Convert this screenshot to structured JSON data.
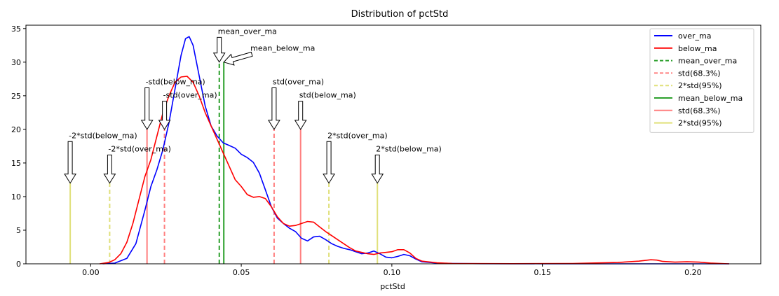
{
  "chart_data": {
    "type": "line",
    "title": "Distribution of pctStd",
    "xlabel": "pctStd",
    "ylabel": "",
    "xlim": [
      -0.0215,
      0.2225
    ],
    "ylim": [
      0,
      35.5
    ],
    "xticks": [
      0.0,
      0.05,
      0.1,
      0.15,
      0.2
    ],
    "xtick_labels": [
      "0.00",
      "0.05",
      "0.10",
      "0.15",
      "0.20"
    ],
    "yticks": [
      0,
      5,
      10,
      15,
      20,
      25,
      30,
      35
    ],
    "ytick_labels": [
      "0",
      "5",
      "10",
      "15",
      "20",
      "25",
      "30",
      "35"
    ],
    "grid": false,
    "legend_position": "top-right",
    "series": [
      {
        "name": "over_ma",
        "color": "#0000ff",
        "points": [
          [
            0.004,
            0
          ],
          [
            0.008,
            0.1
          ],
          [
            0.012,
            0.8
          ],
          [
            0.015,
            3
          ],
          [
            0.018,
            8
          ],
          [
            0.02,
            11.5
          ],
          [
            0.022,
            14
          ],
          [
            0.024,
            17
          ],
          [
            0.026,
            21
          ],
          [
            0.028,
            26
          ],
          [
            0.03,
            31
          ],
          [
            0.0315,
            33.5
          ],
          [
            0.0327,
            33.8
          ],
          [
            0.034,
            32.5
          ],
          [
            0.036,
            28
          ],
          [
            0.038,
            23.5
          ],
          [
            0.04,
            20.5
          ],
          [
            0.042,
            19
          ],
          [
            0.044,
            18
          ],
          [
            0.046,
            17.6
          ],
          [
            0.048,
            17.2
          ],
          [
            0.05,
            16.3
          ],
          [
            0.052,
            15.8
          ],
          [
            0.054,
            15.1
          ],
          [
            0.056,
            13.5
          ],
          [
            0.058,
            11
          ],
          [
            0.06,
            8.5
          ],
          [
            0.062,
            6.8
          ],
          [
            0.064,
            6
          ],
          [
            0.066,
            5.3
          ],
          [
            0.068,
            4.8
          ],
          [
            0.07,
            3.8
          ],
          [
            0.072,
            3.4
          ],
          [
            0.074,
            4
          ],
          [
            0.076,
            4.1
          ],
          [
            0.078,
            3.6
          ],
          [
            0.08,
            3
          ],
          [
            0.082,
            2.6
          ],
          [
            0.084,
            2.3
          ],
          [
            0.086,
            2.1
          ],
          [
            0.088,
            1.8
          ],
          [
            0.09,
            1.5
          ],
          [
            0.092,
            1.6
          ],
          [
            0.094,
            1.9
          ],
          [
            0.096,
            1.5
          ],
          [
            0.098,
            1
          ],
          [
            0.1,
            0.9
          ],
          [
            0.102,
            1.1
          ],
          [
            0.104,
            1.4
          ],
          [
            0.106,
            1.2
          ],
          [
            0.108,
            0.7
          ],
          [
            0.11,
            0.3
          ],
          [
            0.115,
            0.1
          ],
          [
            0.12,
            0.05
          ],
          [
            0.13,
            0.02
          ],
          [
            0.15,
            0.01
          ],
          [
            0.18,
            0
          ],
          [
            0.212,
            0
          ]
        ]
      },
      {
        "name": "below_ma",
        "color": "#ff0000",
        "points": [
          [
            0.003,
            0
          ],
          [
            0.006,
            0.2
          ],
          [
            0.008,
            0.6
          ],
          [
            0.01,
            1.5
          ],
          [
            0.012,
            3.2
          ],
          [
            0.014,
            6
          ],
          [
            0.016,
            9.5
          ],
          [
            0.018,
            13
          ],
          [
            0.02,
            15.5
          ],
          [
            0.022,
            19
          ],
          [
            0.024,
            22.5
          ],
          [
            0.026,
            25
          ],
          [
            0.028,
            27
          ],
          [
            0.03,
            27.8
          ],
          [
            0.032,
            27.9
          ],
          [
            0.034,
            27
          ],
          [
            0.036,
            25
          ],
          [
            0.038,
            22.5
          ],
          [
            0.04,
            20.5
          ],
          [
            0.042,
            18.5
          ],
          [
            0.044,
            16.5
          ],
          [
            0.046,
            14.5
          ],
          [
            0.048,
            12.5
          ],
          [
            0.05,
            11.5
          ],
          [
            0.052,
            10.3
          ],
          [
            0.054,
            9.9
          ],
          [
            0.056,
            10
          ],
          [
            0.058,
            9.7
          ],
          [
            0.06,
            8.5
          ],
          [
            0.062,
            7
          ],
          [
            0.064,
            6
          ],
          [
            0.066,
            5.6
          ],
          [
            0.068,
            5.7
          ],
          [
            0.07,
            6
          ],
          [
            0.072,
            6.3
          ],
          [
            0.074,
            6.2
          ],
          [
            0.076,
            5.5
          ],
          [
            0.078,
            4.8
          ],
          [
            0.08,
            4.2
          ],
          [
            0.082,
            3.6
          ],
          [
            0.084,
            3
          ],
          [
            0.086,
            2.4
          ],
          [
            0.088,
            1.9
          ],
          [
            0.09,
            1.7
          ],
          [
            0.092,
            1.5
          ],
          [
            0.094,
            1.4
          ],
          [
            0.096,
            1.6
          ],
          [
            0.098,
            1.7
          ],
          [
            0.1,
            1.8
          ],
          [
            0.102,
            2.1
          ],
          [
            0.104,
            2.1
          ],
          [
            0.106,
            1.6
          ],
          [
            0.108,
            0.8
          ],
          [
            0.11,
            0.4
          ],
          [
            0.115,
            0.15
          ],
          [
            0.12,
            0.05
          ],
          [
            0.14,
            0.02
          ],
          [
            0.16,
            0.05
          ],
          [
            0.175,
            0.2
          ],
          [
            0.182,
            0.4
          ],
          [
            0.186,
            0.6
          ],
          [
            0.188,
            0.55
          ],
          [
            0.19,
            0.35
          ],
          [
            0.194,
            0.25
          ],
          [
            0.198,
            0.3
          ],
          [
            0.202,
            0.25
          ],
          [
            0.206,
            0.1
          ],
          [
            0.212,
            0
          ]
        ]
      }
    ],
    "vlines": [
      {
        "x": 0.0427,
        "y_top": 30,
        "color": "#2ca02c",
        "dash": true
      },
      {
        "x": 0.0609,
        "y_top": 20,
        "color": "#ff7f7f",
        "dash": true
      },
      {
        "x": 0.0245,
        "y_top": 20,
        "color": "#ff7f7f",
        "dash": true
      },
      {
        "x": 0.0791,
        "y_top": 12,
        "color": "#e0e07a",
        "dash": true
      },
      {
        "x": 0.0063,
        "y_top": 12,
        "color": "#e0e07a",
        "dash": true
      },
      {
        "x": 0.0442,
        "y_top": 30,
        "color": "#2ca02c",
        "dash": false
      },
      {
        "x": 0.0697,
        "y_top": 20,
        "color": "#ff7f7f",
        "dash": false
      },
      {
        "x": 0.0187,
        "y_top": 20,
        "color": "#ff7f7f",
        "dash": false
      },
      {
        "x": 0.0952,
        "y_top": 12,
        "color": "#e0e07a",
        "dash": false
      },
      {
        "x": -0.0068,
        "y_top": 12,
        "color": "#e0e07a",
        "dash": false
      }
    ],
    "annotations": [
      {
        "text": "mean_over_ma",
        "x": 0.0427,
        "y": 30,
        "tx": 0.0427,
        "ty": 34
      },
      {
        "text": "mean_below_ma",
        "x": 0.0442,
        "y": 30,
        "tx": 0.0535,
        "ty": 31.5
      },
      {
        "text": "std(over_ma)",
        "x": 0.0609,
        "y": 20,
        "tx": 0.0609,
        "ty": 26.5
      },
      {
        "text": "-std(over_ma)",
        "x": 0.0245,
        "y": 20,
        "tx": 0.0245,
        "ty": 24.5
      },
      {
        "text": "std(below_ma)",
        "x": 0.0697,
        "y": 20,
        "tx": 0.0697,
        "ty": 24.5
      },
      {
        "text": "-std(below_ma)",
        "x": 0.0187,
        "y": 20,
        "tx": 0.0187,
        "ty": 26.5
      },
      {
        "text": "2*std(over_ma)",
        "x": 0.0791,
        "y": 12,
        "tx": 0.0791,
        "ty": 18.5
      },
      {
        "text": "-2*std(over_ma)",
        "x": 0.0063,
        "y": 12,
        "tx": 0.0063,
        "ty": 16.5
      },
      {
        "text": "2*std(below_ma)",
        "x": 0.0952,
        "y": 12,
        "tx": 0.0952,
        "ty": 16.5
      },
      {
        "text": "-2*std(below_ma)",
        "x": -0.0068,
        "y": 12,
        "tx": -0.0068,
        "ty": 18.5
      }
    ],
    "legend": [
      {
        "label": "over_ma",
        "color": "#0000ff",
        "style": "solid"
      },
      {
        "label": "below_ma",
        "color": "#ff0000",
        "style": "solid"
      },
      {
        "label": "mean_over_ma",
        "color": "#2ca02c",
        "style": "dashed"
      },
      {
        "label": "std(68.3%)",
        "color": "#ff7f7f",
        "style": "dashed"
      },
      {
        "label": "2*std(95%)",
        "color": "#e0e07a",
        "style": "dashed"
      },
      {
        "label": "mean_below_ma",
        "color": "#2ca02c",
        "style": "solid"
      },
      {
        "label": "std(68.3%)",
        "color": "#ff7f7f",
        "style": "solid"
      },
      {
        "label": "2*std(95%)",
        "color": "#e0e07a",
        "style": "solid"
      }
    ]
  }
}
